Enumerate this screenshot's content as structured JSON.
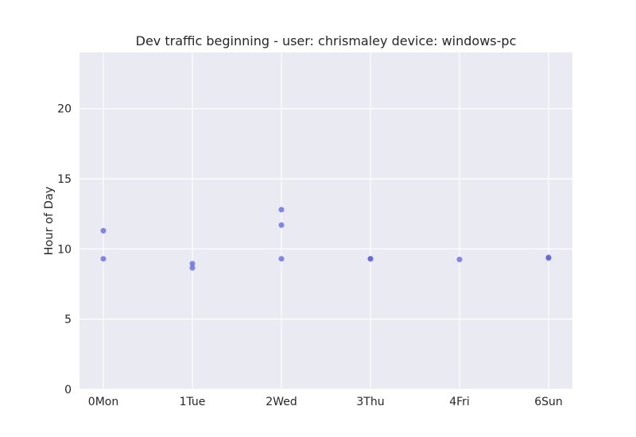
{
  "chart_data": {
    "type": "scatter",
    "title": "Dev traffic beginning - user: chrismaley device: windows-pc",
    "xlabel": "",
    "ylabel": "Hour of Day",
    "categories": [
      "0Mon",
      "1Tue",
      "2Wed",
      "3Thu",
      "4Fri",
      "6Sun"
    ],
    "y_ticks": [
      "0",
      "5",
      "10",
      "15",
      "20"
    ],
    "ylim": [
      0,
      24
    ],
    "grid": true,
    "legend": false,
    "colors": {
      "background": "#eaeaf2",
      "grid": "#ffffff",
      "point": "#5a62e6"
    },
    "points": [
      {
        "x": "0Mon",
        "y": 11.3
      },
      {
        "x": "0Mon",
        "y": 9.3
      },
      {
        "x": "1Tue",
        "y": 8.95
      },
      {
        "x": "1Tue",
        "y": 8.65
      },
      {
        "x": "2Wed",
        "y": 12.8
      },
      {
        "x": "2Wed",
        "y": 11.7
      },
      {
        "x": "2Wed",
        "y": 9.3
      },
      {
        "x": "3Thu",
        "y": 9.3
      },
      {
        "x": "3Thu",
        "y": 9.3
      },
      {
        "x": "4Fri",
        "y": 9.25
      },
      {
        "x": "6Sun",
        "y": 9.4
      },
      {
        "x": "6Sun",
        "y": 9.35
      }
    ]
  }
}
